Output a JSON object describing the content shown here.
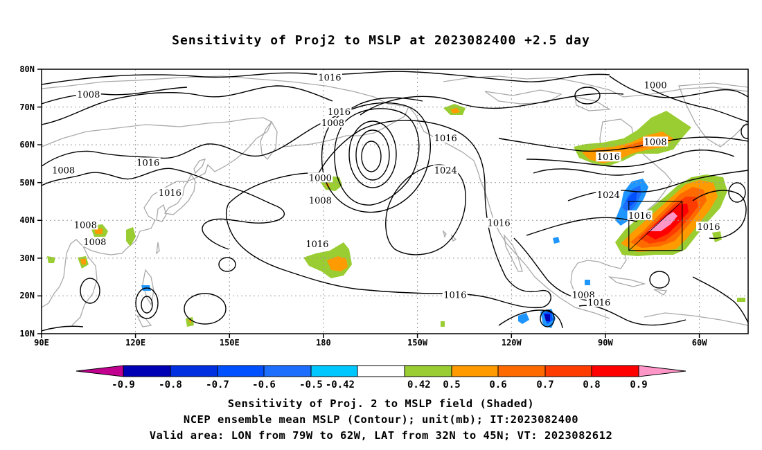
{
  "title": "Sensitivity of Proj2 to MSLP at 2023082400 +2.5 day",
  "axes": {
    "lat_ticks": [
      "80N",
      "70N",
      "60N",
      "50N",
      "40N",
      "30N",
      "20N",
      "10N"
    ],
    "lon_ticks": [
      "90E",
      "120E",
      "150E",
      "180",
      "150W",
      "120W",
      "90W",
      "60W"
    ]
  },
  "colorbar": {
    "labels": [
      "-0.9",
      "-0.8",
      "-0.7",
      "-0.6",
      "-0.5",
      "-0.42",
      "0.42",
      "0.5",
      "0.6",
      "0.7",
      "0.8",
      "0.9"
    ],
    "colors": [
      "#c2008f",
      "#0000b4",
      "#0030e0",
      "#0050ff",
      "#1e6efe",
      "#1e96fe",
      "#00c8ff",
      "#ffffff",
      "#9acd32",
      "#ff9a00",
      "#ff6a00",
      "#ff3c00",
      "#ff0000",
      "#ff96c8"
    ]
  },
  "contour_labels": [
    {
      "text": "1016",
      "lon": -178,
      "lat": 77.5
    },
    {
      "text": "1008",
      "lon": 105,
      "lat": 73
    },
    {
      "text": "1016",
      "lon": -175,
      "lat": 68.5
    },
    {
      "text": "1008",
      "lon": -177,
      "lat": 65.5
    },
    {
      "text": "1016",
      "lon": -141,
      "lat": 61.5
    },
    {
      "text": "1000",
      "lon": -74,
      "lat": 75.5
    },
    {
      "text": "1008",
      "lon": -74,
      "lat": 60.5
    },
    {
      "text": "1016",
      "lon": -89,
      "lat": 56.5
    },
    {
      "text": "1008",
      "lon": 97,
      "lat": 53
    },
    {
      "text": "1016",
      "lon": 124,
      "lat": 55
    },
    {
      "text": "1024",
      "lon": -141,
      "lat": 53
    },
    {
      "text": "1000",
      "lon": -181,
      "lat": 51
    },
    {
      "text": "1008",
      "lon": -181,
      "lat": 45
    },
    {
      "text": "1016",
      "lon": 131,
      "lat": 47
    },
    {
      "text": "1024",
      "lon": -89,
      "lat": 46.5
    },
    {
      "text": "1016",
      "lon": -124,
      "lat": 39
    },
    {
      "text": "1016",
      "lon": -79,
      "lat": 41
    },
    {
      "text": "1016",
      "lon": -57,
      "lat": 38
    },
    {
      "text": "1008",
      "lon": 104,
      "lat": 38.5
    },
    {
      "text": "1008",
      "lon": 107,
      "lat": 34
    },
    {
      "text": "1016",
      "lon": -182,
      "lat": 33.5
    },
    {
      "text": "1016",
      "lon": -138,
      "lat": 20
    },
    {
      "text": "1008",
      "lon": -97,
      "lat": 20
    },
    {
      "text": "1016",
      "lon": -92,
      "lat": 18
    }
  ],
  "footer": {
    "line1": "Sensitivity of Proj. 2 to MSLP field (Shaded)",
    "line2": "NCEP ensemble mean MSLP (Contour); unit(mb); IT:2023082400",
    "line3": "Valid area: LON from 79W to 62W, LAT from 32N to 45N; VT: 2023082612"
  }
}
